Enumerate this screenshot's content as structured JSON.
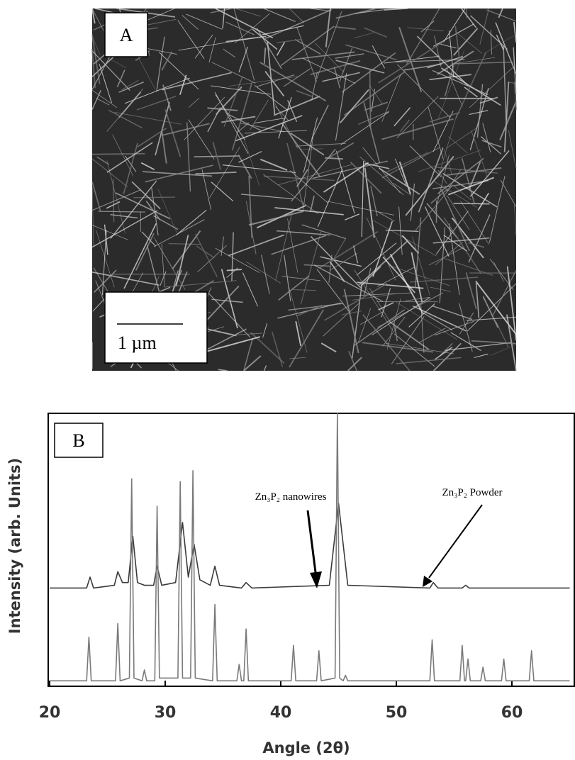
{
  "panel_a": {
    "label": "A",
    "scale_bar_label": "1 µm"
  },
  "chart_data": {
    "type": "line",
    "panel_label": "B",
    "x_label": "Angle (2θ)",
    "y_label": "Intensity (arb. Units)",
    "xlim": [
      20,
      65
    ],
    "xticks": [
      20,
      30,
      40,
      50,
      60
    ],
    "ylim": [
      0,
      100
    ],
    "annotations": [
      "Zn₃P₂ nanowires",
      "Zn₃P₂ Powder"
    ],
    "series": [
      {
        "name": "Zn₃P₂ nanowires",
        "color": "#3a3a3a",
        "x": [
          20,
          23.2,
          23.5,
          23.8,
          25.6,
          25.9,
          26.3,
          26.8,
          27.2,
          27.6,
          28.2,
          29.0,
          29.3,
          29.7,
          30.9,
          31.5,
          32.0,
          32.5,
          33.0,
          33.9,
          34.3,
          34.7,
          36.6,
          37.0,
          37.5,
          44.2,
          45.0,
          45.8,
          52.9,
          53.2,
          53.6,
          55.7,
          56.0,
          56.3,
          65
        ],
        "values": [
          36,
          36,
          40,
          36,
          37,
          42,
          38,
          38,
          55,
          38,
          37,
          37,
          44,
          37,
          38,
          60,
          40,
          52,
          39,
          37,
          44,
          37,
          36,
          38,
          36,
          37,
          67,
          37,
          36,
          38,
          36,
          36,
          37,
          36,
          36
        ]
      },
      {
        "name": "Zn₃P₂ Powder",
        "color": "#7a7a7a",
        "x": [
          20,
          23.2,
          23.4,
          23.6,
          25.7,
          25.9,
          26.1,
          26.9,
          27.1,
          27.3,
          28.0,
          28.2,
          28.4,
          29.1,
          29.3,
          29.5,
          31.1,
          31.3,
          31.5,
          32.2,
          32.4,
          32.6,
          34.1,
          34.3,
          34.5,
          36.2,
          36.4,
          36.6,
          36.8,
          37.0,
          37.2,
          40.9,
          41.1,
          41.3,
          43.1,
          43.3,
          43.5,
          44.7,
          44.9,
          45.1,
          45.4,
          45.6,
          45.8,
          52.9,
          53.1,
          53.3,
          55.5,
          55.7,
          55.9,
          56.0,
          56.2,
          56.4,
          57.3,
          57.5,
          57.7,
          59.1,
          59.3,
          59.5,
          61.5,
          61.7,
          61.9,
          65
        ],
        "values": [
          2,
          2,
          18,
          2,
          2,
          23,
          2,
          3,
          76,
          3,
          2,
          6,
          2,
          2,
          66,
          3,
          3,
          75,
          3,
          3,
          79,
          3,
          2,
          30,
          2,
          2,
          8,
          2,
          2,
          21,
          2,
          2,
          15,
          2,
          2,
          13,
          2,
          3,
          100,
          3,
          2,
          4,
          2,
          2,
          17,
          2,
          2,
          15,
          2,
          2,
          10,
          2,
          2,
          7,
          2,
          2,
          10,
          2,
          2,
          13,
          2,
          2
        ]
      }
    ]
  }
}
